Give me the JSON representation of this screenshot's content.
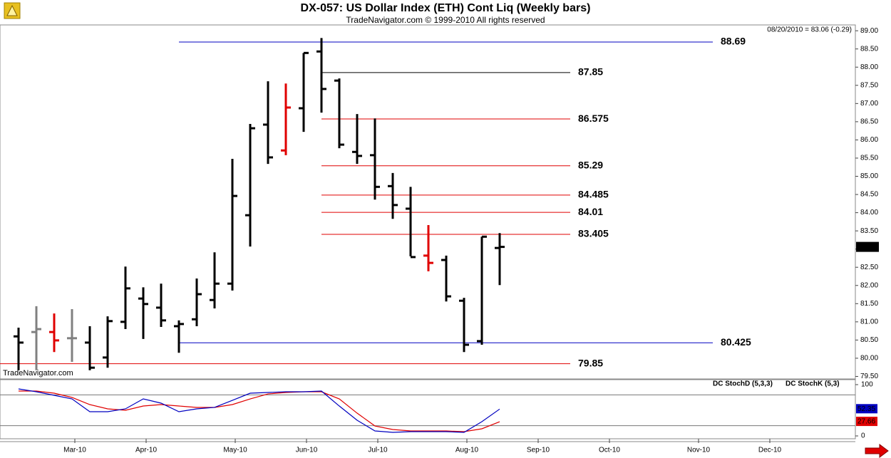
{
  "chart_data": {
    "type": "ohlc",
    "title": "DX-057:  US Dollar Index (ETH) Cont Liq  (Weekly bars)",
    "subtitle": "TradeNavigator.com © 1999-2010 All rights reserved",
    "header_info": "08/20/2010 = 83.06 (-0.29)",
    "watermark": "TradeNavigator.com",
    "categories": [
      null,
      null,
      null,
      "Mar-10",
      null,
      null,
      null,
      "Apr-10",
      null,
      null,
      null,
      null,
      "May-10",
      null,
      null,
      null,
      "Jun-10",
      null,
      null,
      null,
      "Jul-10",
      null,
      null,
      null,
      null,
      "Aug-10",
      null,
      null,
      null,
      "Sep-10",
      null,
      null,
      null,
      "Oct-10",
      null,
      null,
      null,
      null,
      "Nov-10",
      null,
      null,
      null,
      "Dec-10",
      null
    ],
    "open": [
      80.6,
      80.72,
      80.72,
      80.55,
      80.43,
      80.02,
      81.0,
      81.64,
      81.39,
      80.88,
      81.07,
      81.6,
      82.05,
      83.93,
      86.42,
      85.71,
      86.87,
      88.43,
      87.63,
      85.67,
      85.58,
      84.73,
      84.11,
      82.82,
      82.7,
      81.58,
      80.47,
      83.03,
      null,
      null,
      null,
      null,
      null,
      null,
      null,
      null,
      null,
      null,
      null,
      null,
      null,
      null,
      null,
      null
    ],
    "high": [
      80.84,
      81.43,
      81.23,
      81.35,
      80.88,
      81.15,
      82.52,
      81.95,
      82.05,
      81.04,
      82.19,
      82.91,
      85.48,
      86.44,
      87.61,
      87.55,
      88.39,
      88.8,
      87.69,
      86.71,
      86.59,
      85.09,
      84.71,
      83.66,
      82.82,
      81.66,
      83.34,
      83.44,
      null,
      null,
      null,
      null,
      null,
      null,
      null,
      null,
      null,
      null,
      null,
      null,
      null,
      null,
      null,
      null
    ],
    "low": [
      79.67,
      79.67,
      80.17,
      79.9,
      79.67,
      79.74,
      80.8,
      80.53,
      80.86,
      80.15,
      80.88,
      81.37,
      81.86,
      83.07,
      85.34,
      85.58,
      86.22,
      86.75,
      85.77,
      85.34,
      84.36,
      83.83,
      82.8,
      82.39,
      81.56,
      80.17,
      80.37,
      82.01,
      null,
      null,
      null,
      null,
      null,
      null,
      null,
      null,
      null,
      null,
      null,
      null,
      null,
      null,
      null,
      null
    ],
    "close": [
      80.43,
      80.8,
      80.49,
      80.55,
      79.74,
      81.02,
      81.92,
      81.49,
      81.04,
      80.94,
      81.76,
      82.05,
      84.46,
      86.32,
      85.52,
      86.89,
      88.39,
      87.4,
      85.87,
      85.56,
      84.71,
      84.21,
      82.78,
      82.62,
      81.7,
      80.37,
      83.34,
      83.06,
      null,
      null,
      null,
      null,
      null,
      null,
      null,
      null,
      null,
      null,
      null,
      null,
      null,
      null,
      null,
      null
    ],
    "bar_colors": [
      "#000000",
      "#808080",
      "#e00000",
      "#808080",
      "#000000",
      "#000000",
      "#000000",
      "#000000",
      "#000000",
      "#000000",
      "#000000",
      "#000000",
      "#000000",
      "#000000",
      "#000000",
      "#e00000",
      "#000000",
      "#000000",
      "#000000",
      "#000000",
      "#000000",
      "#000000",
      "#000000",
      "#e00000",
      "#000000",
      "#000000",
      "#000000",
      "#000000",
      null,
      null,
      null,
      null,
      null,
      null,
      null,
      null,
      null,
      null,
      null,
      null,
      null,
      null,
      null,
      null
    ],
    "levels": [
      88.69,
      87.85,
      86.575,
      85.29,
      84.485,
      84.01,
      83.405,
      80.425,
      79.85
    ],
    "level_colors": [
      "#0000c0",
      "#000000",
      "#e00000",
      "#e00000",
      "#e00000",
      "#e00000",
      "#e00000",
      "#0000c0",
      "#e00000"
    ],
    "ylim": [
      79.47,
      89.16
    ],
    "yticks": [
      {
        "value": 79.5,
        "label": "79.50"
      },
      {
        "value": 80,
        "label": "80.00"
      },
      {
        "value": 80.5,
        "label": "80.50"
      },
      {
        "value": 81,
        "label": "81.00"
      },
      {
        "value": 81.5,
        "label": "81.50"
      },
      {
        "value": 82,
        "label": "82.00"
      },
      {
        "value": 82.5,
        "label": "82.50"
      },
      {
        "value": 83,
        "label": "83.00"
      },
      {
        "value": 83.5,
        "label": "83.50"
      },
      {
        "value": 84,
        "label": "84.00"
      },
      {
        "value": 84.5,
        "label": "84.50"
      },
      {
        "value": 85,
        "label": "85.00"
      },
      {
        "value": 85.5,
        "label": "85.50"
      },
      {
        "value": 86,
        "label": "86.00"
      },
      {
        "value": 86.5,
        "label": "86.50"
      },
      {
        "value": 87,
        "label": "87.00"
      },
      {
        "value": 87.5,
        "label": "87.50"
      },
      {
        "value": 88,
        "label": "88.00"
      },
      {
        "value": 88.5,
        "label": "88.50"
      },
      {
        "value": 89,
        "label": "89.00"
      }
    ],
    "indicator": {
      "type": "line",
      "ylim": [
        0,
        100
      ],
      "yticks": [
        0,
        100
      ],
      "ref_lines": [
        20,
        80
      ],
      "series": [
        {
          "name": "DC StochD (5,3,3)",
          "color": "#e00000",
          "values": [
            87.5,
            87.5,
            83.3,
            75,
            61.1,
            52.8,
            50,
            58.3,
            61.1,
            58.3,
            55.6,
            55.6,
            61.1,
            72.2,
            81.9,
            84.7,
            86.1,
            86.1,
            72.2,
            44.4,
            19.4,
            12.5,
            9.7,
            9.7,
            9.7,
            8.3,
            13.9,
            27.66,
            null,
            null,
            null,
            null,
            null,
            null,
            null,
            null,
            null,
            null,
            null,
            null,
            null,
            null,
            null,
            null
          ]
        },
        {
          "name": "DC StochK (5,3)",
          "color": "#0000c0",
          "values": [
            91.7,
            86.1,
            79.2,
            72.2,
            47.2,
            47.2,
            52.8,
            72.2,
            63.9,
            47.2,
            52.8,
            55.6,
            69.4,
            83.3,
            84.7,
            86.1,
            86.1,
            87.5,
            58.3,
            30.6,
            9.7,
            6.9,
            8.3,
            8.3,
            8.3,
            6.9,
            27.8,
            52.35,
            null,
            null,
            null,
            null,
            null,
            null,
            null,
            null,
            null,
            null,
            null,
            null,
            null,
            null,
            null,
            null
          ]
        }
      ]
    }
  }
}
